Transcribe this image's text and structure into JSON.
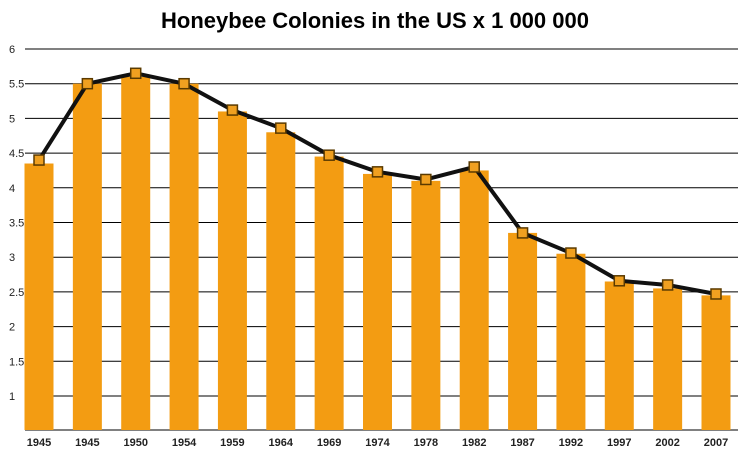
{
  "chart_data": {
    "type": "bar",
    "title": "Honeybee Colonies in the US x 1 000 000",
    "xlabel": "",
    "ylabel": "",
    "categories": [
      "1945",
      "1945",
      "1950",
      "1954",
      "1959",
      "1964",
      "1969",
      "1974",
      "1978",
      "1982",
      "1987",
      "1992",
      "1997",
      "2002",
      "2007"
    ],
    "series": [
      {
        "type": "bar",
        "values": [
          4.35,
          5.5,
          5.6,
          5.5,
          5.1,
          4.8,
          4.45,
          4.2,
          4.1,
          4.25,
          3.35,
          3.05,
          2.65,
          2.55,
          2.45
        ]
      },
      {
        "type": "line",
        "values": [
          4.4,
          5.5,
          5.65,
          5.5,
          5.12,
          4.86,
          4.47,
          4.23,
          4.12,
          4.3,
          3.35,
          3.06,
          2.66,
          2.6,
          2.47
        ]
      }
    ],
    "yticks": [
      1,
      1.5,
      2,
      2.5,
      3,
      3.5,
      4,
      4.5,
      5,
      5.5,
      6
    ],
    "ytick_labels": [
      "1",
      "1.5",
      "2",
      "2.5",
      "3",
      "3.5",
      "4",
      "4.5",
      "5",
      "5.5",
      "6"
    ],
    "ylim": [
      0.5,
      6
    ],
    "grid": "horizontal",
    "colors": {
      "bar": "#f39c12",
      "line": "#111111",
      "marker_fill": "#f0a020",
      "marker_stroke": "#5a3a00",
      "grid": "#000000"
    }
  }
}
